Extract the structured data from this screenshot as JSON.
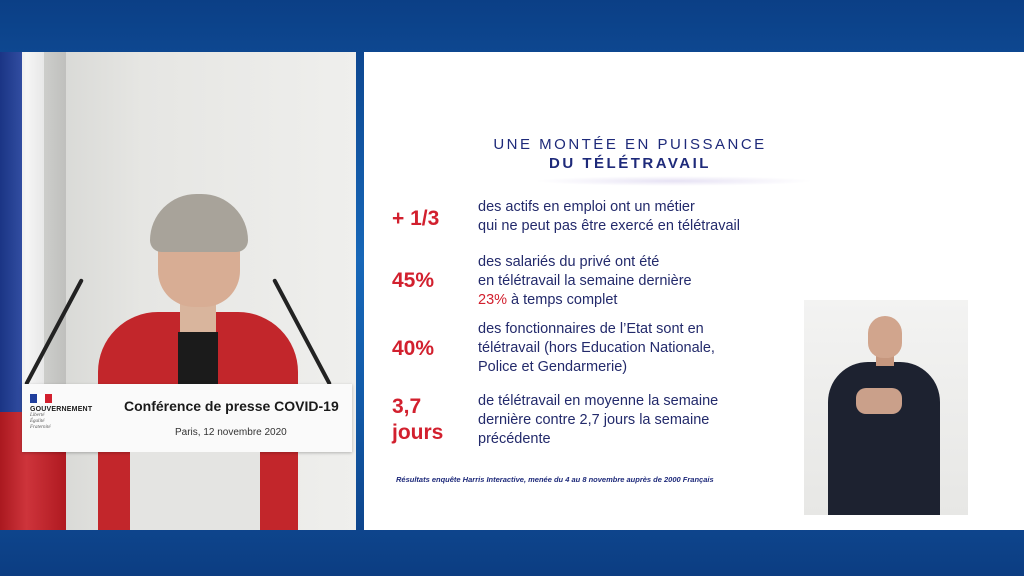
{
  "video": {
    "lectern": {
      "gov_name": "GOUVERNEMENT",
      "gov_motto": [
        "Liberté",
        "Égalité",
        "Fraternité"
      ],
      "title": "Conférence de presse COVID-19",
      "subtitle": "Paris, 12 novembre 2020"
    }
  },
  "slide": {
    "title_line1": "UNE MONTÉE EN PUISSANCE",
    "title_line2": "DU TÉLÉTRAVAIL",
    "stats": [
      {
        "value": "+ 1/3",
        "lines": [
          "des actifs en emploi ont un métier",
          "qui ne peut pas être exercé en télétravail"
        ]
      },
      {
        "value": "45%",
        "lines": [
          "des salariés du privé ont été",
          "en télétravail la semaine dernière"
        ],
        "highlight": "23%",
        "highlight_rest": " à temps complet"
      },
      {
        "value": "40%",
        "lines": [
          "des fonctionnaires de l’Etat sont en",
          "télétravail (hors Education Nationale,",
          "Police et Gendarmerie)"
        ]
      },
      {
        "value_line1": "3,7",
        "value_line2": "jours",
        "lines": [
          "de télétravail en moyenne la semaine",
          "dernière contre 2,7 jours la semaine",
          "précédente"
        ]
      }
    ],
    "footnote": "Résultats enquête Harris Interactive, menée du 4 au 8 novembre auprès de 2000 Français"
  },
  "colors": {
    "accent_red": "#d2202e",
    "navy": "#1e2a7a",
    "background_blue": "#1767b8"
  }
}
